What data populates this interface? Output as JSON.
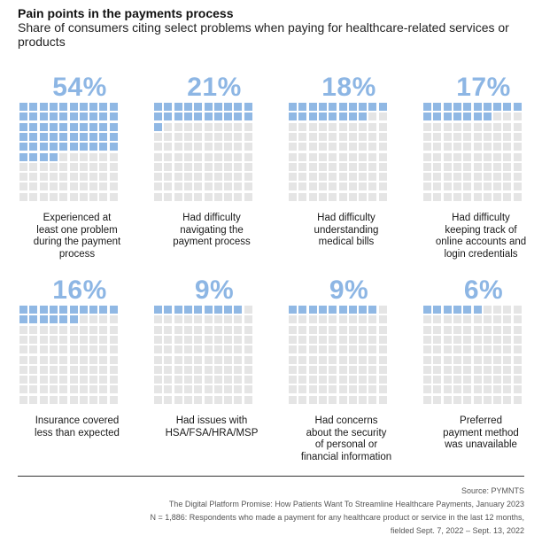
{
  "chart_data": {
    "type": "waffle",
    "title": "Pain points in the payments process",
    "subtitle": "Share of consumers citing select problems when paying for healthcare-related services or products",
    "units_per_chart": 100,
    "grid": "10 columns x 10 rows",
    "filled_color": "#90b8e4",
    "empty_color": "#e5e5e5",
    "items": [
      {
        "pct_label": "54%",
        "value": 54,
        "label": "Experienced at\nleast one problem\nduring the payment\nprocess"
      },
      {
        "pct_label": "21%",
        "value": 21,
        "label": "Had difficulty\nnavigating the\npayment process"
      },
      {
        "pct_label": "18%",
        "value": 18,
        "label": "Had difficulty\nunderstanding\nmedical bills"
      },
      {
        "pct_label": "17%",
        "value": 17,
        "label": "Had difficulty\nkeeping track of\nonline accounts and\nlogin credentials"
      },
      {
        "pct_label": "16%",
        "value": 16,
        "label": "Insurance covered\nless than expected"
      },
      {
        "pct_label": "9%",
        "value": 9,
        "label": "Had issues with\nHSA/FSA/HRA/MSP"
      },
      {
        "pct_label": "9%",
        "value": 9,
        "label": "Had concerns\nabout the security\nof personal or\nfinancial information"
      },
      {
        "pct_label": "6%",
        "value": 6,
        "label": "Preferred\npayment method\nwas unavailable"
      }
    ]
  },
  "footer": {
    "source": "Source: PYMNTS",
    "report": "The Digital Platform Promise: How Patients Want To Streamline Healthcare Payments, January 2023",
    "note_line1": "N = 1,886: Respondents who made a payment for any healthcare product or service in the last 12 months,",
    "note_line2": "fielded Sept. 7, 2022 – Sept. 13, 2022"
  }
}
